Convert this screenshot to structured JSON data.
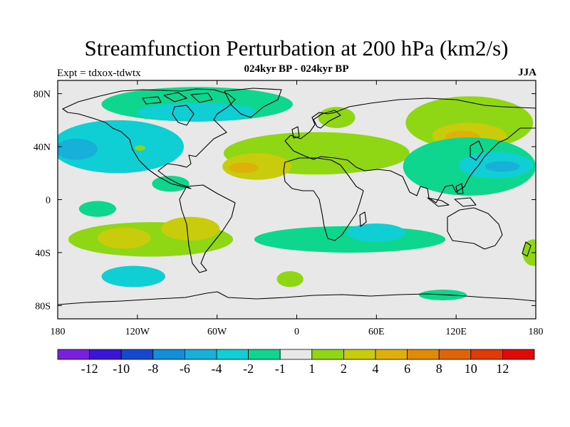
{
  "title": "Streamfunction Perturbation at 200 hPa (km2/s)",
  "subtitle": "024kyr BP - 024kyr BP",
  "experiment": "Expt = tdxox-tdwtx",
  "season": "JJA",
  "map": {
    "lon_range": [
      -180,
      180
    ],
    "lat_range": [
      -90,
      90
    ],
    "lon_ticks": [
      {
        "value": -180,
        "label": "180"
      },
      {
        "value": -120,
        "label": "120W"
      },
      {
        "value": -60,
        "label": "60W"
      },
      {
        "value": 0,
        "label": "0"
      },
      {
        "value": 60,
        "label": "60E"
      },
      {
        "value": 120,
        "label": "120E"
      },
      {
        "value": 180,
        "label": "180"
      }
    ],
    "lat_ticks": [
      {
        "value": 80,
        "label": "80N"
      },
      {
        "value": 40,
        "label": "40N"
      },
      {
        "value": 0,
        "label": "0"
      },
      {
        "value": -40,
        "label": "40S"
      },
      {
        "value": -80,
        "label": "80S"
      }
    ]
  },
  "colorbar": {
    "colors": [
      "#7a1fe0",
      "#3a14d8",
      "#1448d0",
      "#138ed8",
      "#16b0d8",
      "#10cfd4",
      "#0fd68f",
      "#e8e8e8",
      "#8fd615",
      "#c8cc0a",
      "#e0b00a",
      "#e08a08",
      "#e06406",
      "#e03a06",
      "#e00a06"
    ],
    "labels": [
      "-12",
      "-10",
      "-8",
      "-6",
      "-4",
      "-2",
      "-1",
      "1",
      "2",
      "4",
      "6",
      "8",
      "10",
      "12"
    ]
  },
  "palette": {
    "background": "#e8e8e8",
    "neg1": "#0fd68f",
    "neg2": "#10cfd4",
    "neg4": "#16b0d8",
    "pos1": "#8fd615",
    "pos2": "#c8cc0a",
    "pos4": "#e0b00a"
  },
  "anomalies": [
    {
      "lon": -135,
      "lat": 40,
      "rx": 50,
      "ry": 20,
      "value": "neg2"
    },
    {
      "lon": -166,
      "lat": 38,
      "rx": 16,
      "ry": 8,
      "value": "neg4"
    },
    {
      "lon": -75,
      "lat": 72,
      "rx": 72,
      "ry": 13,
      "value": "neg1"
    },
    {
      "lon": -75,
      "lat": 66,
      "rx": 45,
      "ry": 7,
      "value": "neg2"
    },
    {
      "lon": -118,
      "lat": 39,
      "rx": 4,
      "ry": 2,
      "value": "pos1"
    },
    {
      "lon": 130,
      "lat": 58,
      "rx": 48,
      "ry": 20,
      "value": "pos1"
    },
    {
      "lon": 130,
      "lat": 48,
      "rx": 28,
      "ry": 10,
      "value": "pos2"
    },
    {
      "lon": 125,
      "lat": 47,
      "rx": 13,
      "ry": 5,
      "value": "pos4"
    },
    {
      "lon": 30,
      "lat": 62,
      "rx": 14,
      "ry": 8,
      "value": "pos1"
    },
    {
      "lon": 15,
      "lat": 35,
      "rx": 70,
      "ry": 16,
      "value": "pos1"
    },
    {
      "lon": -30,
      "lat": 25,
      "rx": 26,
      "ry": 10,
      "value": "pos2"
    },
    {
      "lon": -40,
      "lat": 24,
      "rx": 11,
      "ry": 4,
      "value": "pos4"
    },
    {
      "lon": 130,
      "lat": 25,
      "rx": 50,
      "ry": 22,
      "value": "neg1"
    },
    {
      "lon": 150,
      "lat": 26,
      "rx": 28,
      "ry": 10,
      "value": "neg2"
    },
    {
      "lon": 155,
      "lat": 25,
      "rx": 13,
      "ry": 4,
      "value": "neg4"
    },
    {
      "lon": 90,
      "lat": 28,
      "rx": 8,
      "ry": 5,
      "value": "neg1"
    },
    {
      "lon": -95,
      "lat": 12,
      "rx": 14,
      "ry": 6,
      "value": "neg1"
    },
    {
      "lon": -150,
      "lat": -7,
      "rx": 14,
      "ry": 6,
      "value": "neg1"
    },
    {
      "lon": -110,
      "lat": -30,
      "rx": 62,
      "ry": 13,
      "value": "pos1"
    },
    {
      "lon": -80,
      "lat": -22,
      "rx": 22,
      "ry": 9,
      "value": "pos2"
    },
    {
      "lon": -130,
      "lat": -29,
      "rx": 20,
      "ry": 8,
      "value": "pos2"
    },
    {
      "lon": 40,
      "lat": -30,
      "rx": 72,
      "ry": 10,
      "value": "neg1"
    },
    {
      "lon": 60,
      "lat": -25,
      "rx": 22,
      "ry": 7,
      "value": "neg2"
    },
    {
      "lon": -123,
      "lat": -58,
      "rx": 24,
      "ry": 8,
      "value": "neg2"
    },
    {
      "lon": -5,
      "lat": -60,
      "rx": 10,
      "ry": 6,
      "value": "pos1"
    },
    {
      "lon": 110,
      "lat": -72,
      "rx": 18,
      "ry": 4,
      "value": "neg1"
    },
    {
      "lon": 178,
      "lat": -40,
      "rx": 8,
      "ry": 10,
      "value": "pos1"
    }
  ]
}
